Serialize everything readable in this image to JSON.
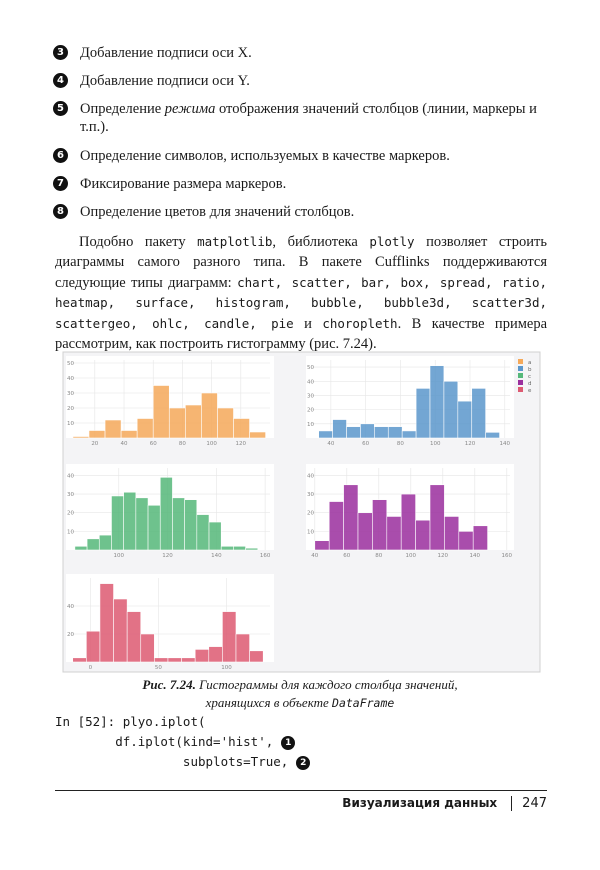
{
  "list": [
    {
      "number": "3",
      "parts": [
        {
          "text": "Добавление подписи оси X."
        }
      ]
    },
    {
      "number": "4",
      "parts": [
        {
          "text": "Добавление подписи оси Y."
        }
      ]
    },
    {
      "number": "5",
      "parts": [
        {
          "text": "Определение "
        },
        {
          "text": "режима",
          "style": "italic"
        },
        {
          "text": " отображения значений столбцов (линии, маркеры и т.п.)."
        }
      ]
    },
    {
      "number": "6",
      "parts": [
        {
          "text": "Определение символов, используемых в качестве маркеров."
        }
      ]
    },
    {
      "number": "7",
      "parts": [
        {
          "text": "Фиксирование размера маркеров."
        }
      ]
    },
    {
      "number": "8",
      "parts": [
        {
          "text": "Определение цветов для значений столбцов."
        }
      ]
    }
  ],
  "paragraph": {
    "parts": [
      {
        "text": "Подобно пакету "
      },
      {
        "text": "matplotlib",
        "style": "code"
      },
      {
        "text": ", библиотека "
      },
      {
        "text": "plotly",
        "style": "code"
      },
      {
        "text": " позволяет строить диаграммы самого разного типа. В пакете Cufflinks поддерживаются следующие типы диаграмм: "
      },
      {
        "text": "chart, scatter, bar, box, spread, ratio, heatmap, surface, histogram, bubble, bubble3d, scatter3d, scattergeo, ohlc, candle, pie",
        "style": "code"
      },
      {
        "text": " и "
      },
      {
        "text": "choropleth",
        "style": "code"
      },
      {
        "text": ". В качестве примера рассмотрим, как построить гистограмму (рис. 7.24)."
      }
    ]
  },
  "figure": {
    "charts": [
      {
        "type": "histogram",
        "name": "a",
        "color": "#f5a95a",
        "bins": [
          5,
          16,
          27,
          38,
          49,
          60,
          71,
          82,
          93,
          104,
          115,
          126,
          137
        ],
        "values": [
          1,
          5,
          12,
          5,
          13,
          35,
          20,
          22,
          30,
          20,
          13,
          4
        ],
        "xlim": [
          3,
          140
        ],
        "ylim": [
          0,
          52
        ],
        "xticks": [
          20,
          40,
          60,
          80,
          100,
          120
        ],
        "yticks": [
          10,
          20,
          30,
          40,
          50
        ],
        "grid": true
      },
      {
        "type": "histogram",
        "name": "b",
        "color": "#5b97cc",
        "bins": [
          33,
          41,
          49,
          57,
          65,
          73,
          81,
          89,
          97,
          105,
          113,
          121,
          129,
          137
        ],
        "values": [
          5,
          13,
          8,
          10,
          8,
          8,
          5,
          35,
          51,
          40,
          26,
          35,
          4
        ],
        "xlim": [
          28,
          143
        ],
        "ylim": [
          0,
          55
        ],
        "xticks": [
          40,
          60,
          80,
          100,
          120,
          140
        ],
        "yticks": [
          10,
          20,
          30,
          40,
          50
        ],
        "grid": true
      },
      {
        "type": "histogram",
        "name": "c",
        "color": "#55b87a",
        "bins": [
          82,
          87,
          92,
          97,
          102,
          107,
          112,
          117,
          122,
          127,
          132,
          137,
          142,
          147,
          152,
          157
        ],
        "values": [
          2,
          6,
          8,
          29,
          31,
          28,
          24,
          39,
          28,
          27,
          19,
          15,
          2,
          2,
          1
        ],
        "xlim": [
          80,
          162
        ],
        "ylim": [
          0,
          44
        ],
        "xticks": [
          100,
          120,
          140,
          160
        ],
        "yticks": [
          10,
          20,
          30,
          40
        ],
        "grid": true
      },
      {
        "type": "histogram",
        "name": "d",
        "color": "#9b2f9e",
        "bins": [
          40,
          49,
          58,
          67,
          76,
          85,
          94,
          103,
          112,
          121,
          130,
          139,
          148
        ],
        "values": [
          5,
          26,
          35,
          20,
          27,
          18,
          30,
          16,
          35,
          18,
          10,
          13
        ],
        "xlim": [
          37,
          162
        ],
        "ylim": [
          0,
          44
        ],
        "xticks": [
          40,
          60,
          80,
          100,
          120,
          140,
          160
        ],
        "yticks": [
          10,
          20,
          30,
          40
        ],
        "grid": true
      },
      {
        "type": "histogram",
        "name": "e",
        "color": "#dd5a72",
        "bins": [
          -13,
          -3,
          7,
          17,
          27,
          37,
          47,
          57,
          67,
          77,
          87,
          97,
          107,
          117,
          127
        ],
        "values": [
          3,
          22,
          56,
          45,
          36,
          20,
          3,
          3,
          3,
          9,
          11,
          36,
          20,
          8
        ],
        "xlim": [
          -15,
          132
        ],
        "ylim": [
          0,
          60
        ],
        "xticks": [
          0,
          50,
          100
        ],
        "yticks": [
          20,
          40
        ],
        "grid": true
      }
    ],
    "caption": [
      [
        {
          "text": "Рис. 7.24.",
          "style": "bold"
        },
        {
          "text": " Гистограммы для каждого столбца значений,"
        }
      ],
      [
        {
          "text": "хранящихся в объекте "
        },
        {
          "text": "DataFrame",
          "style": "code"
        }
      ]
    ]
  },
  "code": [
    {
      "text": "In [52]: plyo.iplot("
    },
    {
      "text": "        df.iplot(kind='hist',",
      "marker": "1"
    },
    {
      "text": "                 subplots=True,",
      "marker": "2"
    }
  ],
  "footer": {
    "section": "Визуализация данных",
    "page": "247"
  }
}
